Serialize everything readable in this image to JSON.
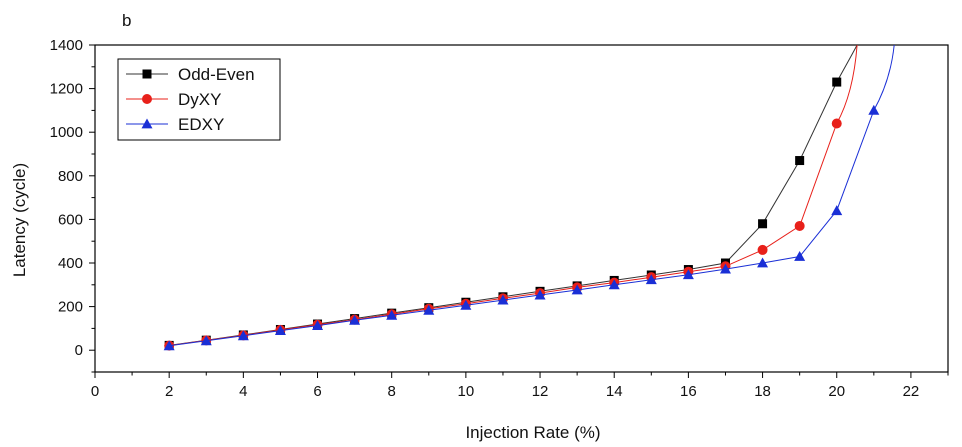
{
  "panel_label": "b",
  "chart_data": {
    "type": "line",
    "title": "",
    "xlabel": "Injection Rate (%)",
    "ylabel": "Latency (cycle)",
    "xlim": [
      0,
      23
    ],
    "ylim": [
      -100,
      1400
    ],
    "xticks": [
      0,
      2,
      4,
      6,
      8,
      10,
      12,
      14,
      16,
      18,
      20,
      22
    ],
    "yticks": [
      0,
      200,
      400,
      600,
      800,
      1000,
      1200,
      1400
    ],
    "grid": false,
    "legend_position": "top-left",
    "series": [
      {
        "name": "Odd-Even",
        "marker": "square",
        "color": "#000000",
        "line_color": "#333333",
        "x": [
          2,
          3,
          4,
          5,
          6,
          7,
          8,
          9,
          10,
          11,
          12,
          13,
          14,
          15,
          16,
          17,
          18,
          19,
          20
        ],
        "y": [
          22,
          46,
          70,
          95,
          120,
          145,
          170,
          195,
          220,
          245,
          270,
          295,
          320,
          345,
          370,
          400,
          580,
          870,
          1230
        ]
      },
      {
        "name": "DyXY",
        "marker": "circle",
        "color": "#e8201a",
        "line_color": "#e8201a",
        "x": [
          2,
          3,
          4,
          5,
          6,
          7,
          8,
          9,
          10,
          11,
          12,
          13,
          14,
          15,
          16,
          17,
          18,
          19,
          20
        ],
        "y": [
          21,
          45,
          68,
          93,
          117,
          140,
          165,
          190,
          213,
          238,
          262,
          288,
          310,
          335,
          360,
          385,
          460,
          570,
          1040
        ]
      },
      {
        "name": "EDXY",
        "marker": "triangle",
        "color": "#1a2fd6",
        "line_color": "#1a2fd6",
        "x": [
          2,
          3,
          4,
          5,
          6,
          7,
          8,
          9,
          10,
          11,
          12,
          13,
          14,
          15,
          16,
          17,
          18,
          19,
          20,
          21
        ],
        "y": [
          20,
          43,
          66,
          90,
          113,
          137,
          160,
          183,
          206,
          230,
          253,
          276,
          300,
          323,
          346,
          372,
          400,
          430,
          640,
          1100
        ]
      }
    ]
  }
}
